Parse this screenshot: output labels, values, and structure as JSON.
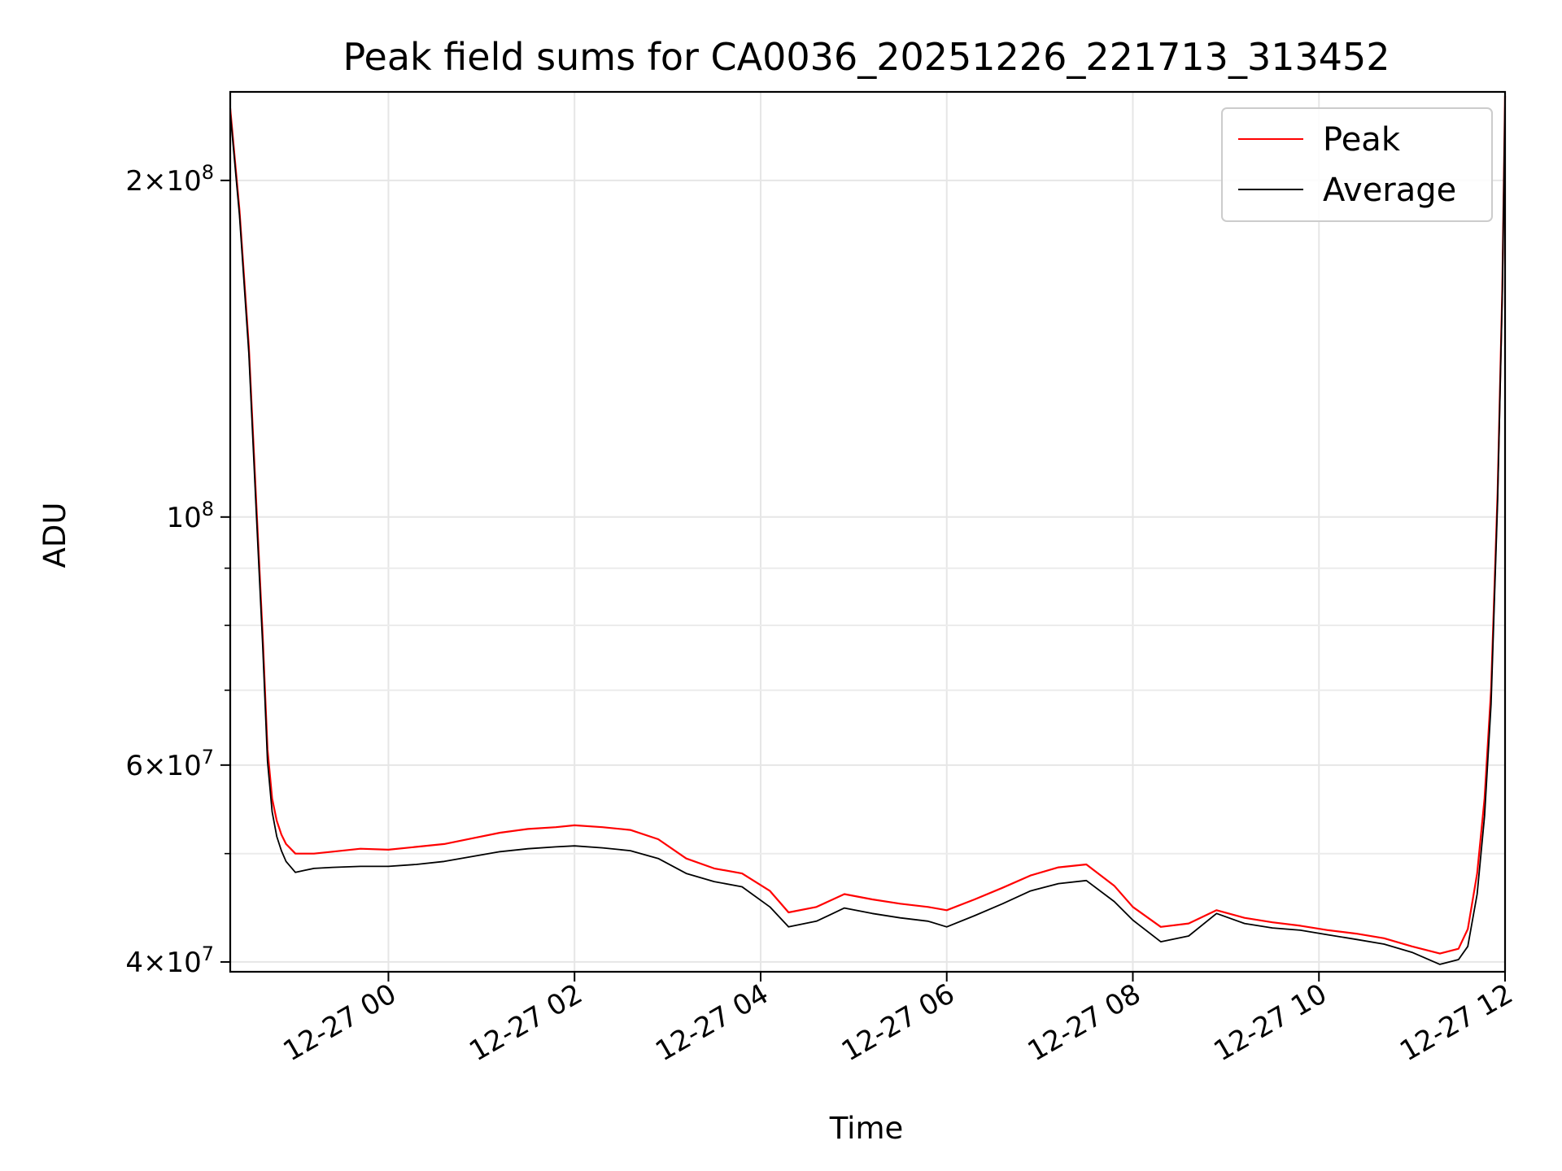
{
  "chart_data": {
    "type": "line",
    "title": "Peak field sums for CA0036_20251226_221713_313452",
    "xlabel": "Time",
    "ylabel": "ADU",
    "yscale": "log",
    "xlim_hours": [
      -1.7,
      12.0
    ],
    "ylim": [
      39200000,
      240000000
    ],
    "grid": true,
    "legend_position": "top-right",
    "x_ticks": [
      {
        "hour": 0,
        "label": "12-27 00"
      },
      {
        "hour": 2,
        "label": "12-27 02"
      },
      {
        "hour": 4,
        "label": "12-27 04"
      },
      {
        "hour": 6,
        "label": "12-27 06"
      },
      {
        "hour": 8,
        "label": "12-27 08"
      },
      {
        "hour": 10,
        "label": "12-27 10"
      },
      {
        "hour": 12,
        "label": "12-27 12"
      }
    ],
    "y_major_ticks": [
      {
        "value": 40000000,
        "mantissa": "4",
        "exponent": "7"
      },
      {
        "value": 60000000,
        "mantissa": "6",
        "exponent": "7"
      },
      {
        "value": 100000000,
        "mantissa": "",
        "exponent": "8"
      },
      {
        "value": 200000000,
        "mantissa": "2",
        "exponent": "8"
      }
    ],
    "y_minor_ticks": [
      50000000,
      70000000,
      80000000,
      90000000
    ],
    "x_unit_note": "x values are hours relative to 12-27 00:00",
    "series": [
      {
        "name": "Peak",
        "color": "#ff0000",
        "x": [
          -1.7,
          -1.6,
          -1.5,
          -1.42,
          -1.35,
          -1.3,
          -1.25,
          -1.2,
          -1.15,
          -1.1,
          -1.0,
          -0.9,
          -0.8,
          -0.6,
          -0.3,
          0.0,
          0.3,
          0.6,
          0.9,
          1.2,
          1.5,
          1.8,
          2.0,
          2.3,
          2.6,
          2.9,
          3.2,
          3.5,
          3.8,
          4.1,
          4.3,
          4.6,
          4.9,
          5.2,
          5.5,
          5.8,
          6.0,
          6.3,
          6.6,
          6.9,
          7.2,
          7.5,
          7.8,
          8.0,
          8.3,
          8.6,
          8.9,
          9.2,
          9.5,
          9.8,
          10.1,
          10.4,
          10.7,
          11.0,
          11.3,
          11.5,
          11.6,
          11.7,
          11.78,
          11.85,
          11.92,
          11.97,
          12.0
        ],
        "y": [
          232000000,
          188000000,
          142000000,
          103000000,
          78000000,
          62000000,
          56000000,
          53500000,
          52000000,
          51000000,
          50000000,
          50000000,
          50000000,
          50200000,
          50500000,
          50400000,
          50700000,
          51000000,
          51600000,
          52200000,
          52600000,
          52800000,
          53000000,
          52800000,
          52500000,
          51500000,
          49500000,
          48500000,
          48000000,
          46300000,
          44300000,
          44800000,
          46000000,
          45500000,
          45100000,
          44800000,
          44500000,
          45500000,
          46600000,
          47800000,
          48600000,
          48900000,
          46800000,
          44800000,
          43000000,
          43300000,
          44500000,
          43800000,
          43400000,
          43100000,
          42700000,
          42400000,
          42000000,
          41300000,
          40700000,
          41100000,
          42800000,
          48000000,
          56000000,
          70000000,
          105000000,
          160000000,
          238000000
        ]
      },
      {
        "name": "Average",
        "color": "#000000",
        "x": [
          -1.7,
          -1.6,
          -1.5,
          -1.42,
          -1.35,
          -1.3,
          -1.25,
          -1.2,
          -1.15,
          -1.1,
          -1.0,
          -0.9,
          -0.8,
          -0.6,
          -0.3,
          0.0,
          0.3,
          0.6,
          0.9,
          1.2,
          1.5,
          1.8,
          2.0,
          2.3,
          2.6,
          2.9,
          3.2,
          3.5,
          3.8,
          4.1,
          4.3,
          4.6,
          4.9,
          5.2,
          5.5,
          5.8,
          6.0,
          6.3,
          6.6,
          6.9,
          7.2,
          7.5,
          7.8,
          8.0,
          8.3,
          8.6,
          8.9,
          9.2,
          9.5,
          9.8,
          10.1,
          10.4,
          10.7,
          11.0,
          11.3,
          11.5,
          11.6,
          11.7,
          11.78,
          11.85,
          11.92,
          11.97,
          12.0
        ],
        "y": [
          230000000,
          186000000,
          140000000,
          101000000,
          76500000,
          60500000,
          54500000,
          51800000,
          50300000,
          49200000,
          48100000,
          48300000,
          48500000,
          48600000,
          48700000,
          48700000,
          48900000,
          49200000,
          49700000,
          50200000,
          50500000,
          50700000,
          50800000,
          50600000,
          50300000,
          49500000,
          48000000,
          47200000,
          46700000,
          44800000,
          43000000,
          43500000,
          44700000,
          44200000,
          43800000,
          43500000,
          43000000,
          44000000,
          45100000,
          46300000,
          47000000,
          47300000,
          45300000,
          43600000,
          41700000,
          42200000,
          44200000,
          43300000,
          42900000,
          42700000,
          42300000,
          41900000,
          41500000,
          40800000,
          39800000,
          40200000,
          41300000,
          46000000,
          54000000,
          68000000,
          103000000,
          158000000,
          236000000
        ]
      }
    ]
  }
}
